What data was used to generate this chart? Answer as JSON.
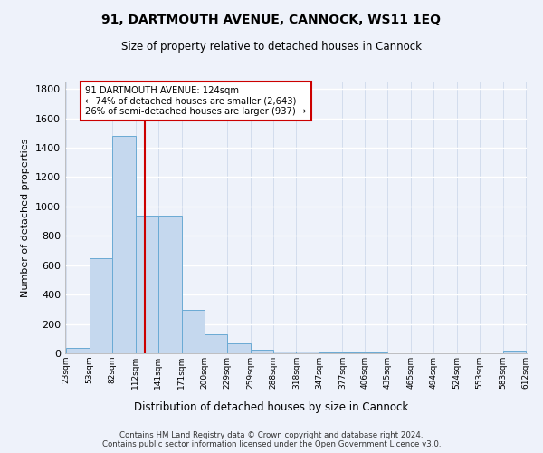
{
  "title1": "91, DARTMOUTH AVENUE, CANNOCK, WS11 1EQ",
  "title2": "Size of property relative to detached houses in Cannock",
  "xlabel": "Distribution of detached houses by size in Cannock",
  "ylabel": "Number of detached properties",
  "bar_edges": [
    23,
    53,
    82,
    112,
    141,
    171,
    200,
    229,
    259,
    288,
    318,
    347,
    377,
    406,
    435,
    465,
    494,
    524,
    553,
    583,
    612
  ],
  "bar_heights": [
    35,
    645,
    1480,
    935,
    935,
    295,
    130,
    65,
    25,
    15,
    10,
    5,
    5,
    5,
    0,
    0,
    0,
    0,
    0,
    20
  ],
  "bar_color": "#c5d8ee",
  "bar_edge_color": "#6aaad4",
  "property_size": 124,
  "vline_color": "#cc0000",
  "annotation_line1": "91 DARTMOUTH AVENUE: 124sqm",
  "annotation_line2": "← 74% of detached houses are smaller (2,643)",
  "annotation_line3": "26% of semi-detached houses are larger (937) →",
  "annotation_box_color": "#ffffff",
  "annotation_box_edge": "#cc0000",
  "background_color": "#eef2fa",
  "footer_text": "Contains HM Land Registry data © Crown copyright and database right 2024.\nContains public sector information licensed under the Open Government Licence v3.0.",
  "ylim": [
    0,
    1850
  ],
  "yticks": [
    0,
    200,
    400,
    600,
    800,
    1000,
    1200,
    1400,
    1600,
    1800
  ]
}
